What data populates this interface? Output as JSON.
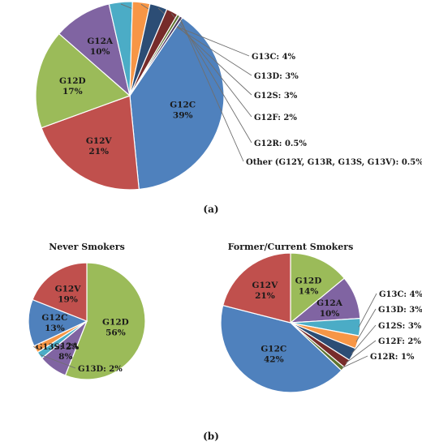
{
  "chart_data": [
    {
      "type": "pie",
      "panel": "(a)",
      "title": "",
      "slices": [
        {
          "label": "G12C",
          "value": 39,
          "label_text": "39%",
          "color": "#4F81BD"
        },
        {
          "label": "G12V",
          "value": 21,
          "label_text": "21%",
          "color": "#C0504D"
        },
        {
          "label": "G12D",
          "value": 17,
          "label_text": "17%",
          "color": "#9BBB59"
        },
        {
          "label": "G12A",
          "value": 10,
          "label_text": "10%",
          "color": "#8064A2"
        },
        {
          "label": "G13C",
          "value": 4,
          "label_text": "G13C: 4%",
          "color": "#4BACC6"
        },
        {
          "label": "G13D",
          "value": 3,
          "label_text": "G13D: 3%",
          "color": "#F79646"
        },
        {
          "label": "G12S",
          "value": 3,
          "label_text": "G12S: 3%",
          "color": "#2C4D75"
        },
        {
          "label": "G12F",
          "value": 2,
          "label_text": "G12F: 2%",
          "color": "#772C2A"
        },
        {
          "label": "G12R",
          "value": 0.5,
          "label_text": "G12R: 0.5%",
          "color": "#5F7530"
        },
        {
          "label": "Other (G12Y, G13R, G13S, G13V)",
          "value": 0.5,
          "label_text": "Other (G12Y, G13R, G13S, G13V): 0.5%",
          "color": "#4D3B62"
        }
      ]
    },
    {
      "type": "pie",
      "panel": "(b)",
      "title": "Never Smokers",
      "slices": [
        {
          "label": "G12D",
          "value": 56,
          "label_text": "56%",
          "color": "#9BBB59"
        },
        {
          "label": "G12A",
          "value": 8,
          "label_text": "8%",
          "color": "#8064A2"
        },
        {
          "label": "G13D",
          "value": 2,
          "label_text": "G13D: 2%",
          "color": "#4BACC6"
        },
        {
          "label": "G13S",
          "value": 2,
          "label_text": "G13S: 2%",
          "color": "#F79646"
        },
        {
          "label": "G12C",
          "value": 13,
          "label_text": "13%",
          "color": "#4F81BD"
        },
        {
          "label": "G12V",
          "value": 19,
          "label_text": "19%",
          "color": "#C0504D"
        }
      ]
    },
    {
      "type": "pie",
      "panel": "(b)",
      "title": "Former/Current Smokers",
      "slices": [
        {
          "label": "G12D",
          "value": 14,
          "label_text": "14%",
          "color": "#9BBB59"
        },
        {
          "label": "G12A",
          "value": 10,
          "label_text": "10%",
          "color": "#8064A2"
        },
        {
          "label": "G13C",
          "value": 4,
          "label_text": "G13C: 4%",
          "color": "#4BACC6"
        },
        {
          "label": "G13D",
          "value": 3,
          "label_text": "G13D: 3%",
          "color": "#F79646"
        },
        {
          "label": "G12S",
          "value": 3,
          "label_text": "G12S: 3%",
          "color": "#2C4D75"
        },
        {
          "label": "G12F",
          "value": 2,
          "label_text": "G12F: 2%",
          "color": "#772C2A"
        },
        {
          "label": "G12R",
          "value": 1,
          "label_text": "G12R: 1%",
          "color": "#5F7530"
        },
        {
          "label": "G12C",
          "value": 42,
          "label_text": "42%",
          "color": "#4F81BD"
        },
        {
          "label": "G12V",
          "value": 21,
          "label_text": "21%",
          "color": "#C0504D"
        }
      ]
    }
  ]
}
